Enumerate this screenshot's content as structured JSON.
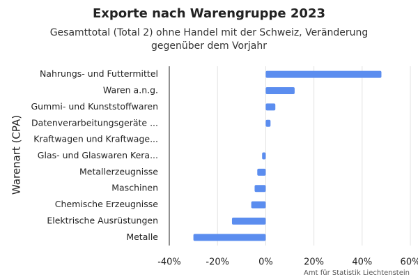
{
  "chart_data": {
    "type": "barh",
    "title": "Exporte nach Warengruppe 2023",
    "subtitle": "Gesamttotal (Total 2) ohne Handel mit der Schweiz, Veränderung gegenüber dem Vorjahr",
    "y_label": "Warenart (CPA)",
    "source": "Amt für Statistik Liechtenstein",
    "categories": [
      "Nahrungs- und Futtermittel",
      "Waren a.n.g.",
      "Gummi- und Kunststoffwaren",
      "Datenverarbeitungsgeräte ...",
      "Kraftwagen und Kraftwage...",
      "Glas- und Glaswaren Kera...",
      "Metallerzeugnisse",
      "Maschinen",
      "Chemische Erzeugnisse",
      "Elektrische Ausrüstungen",
      "Metalle"
    ],
    "values": [
      48,
      12,
      4,
      2,
      0,
      -1.5,
      -3.5,
      -4.6,
      -6,
      -14,
      -30
    ],
    "color": "#5b8def",
    "xlim": [
      -40,
      60
    ],
    "xticks": [
      {
        "value": -40,
        "label": "-40%"
      },
      {
        "value": -20,
        "label": "-20%"
      },
      {
        "value": 0,
        "label": "0%"
      },
      {
        "value": 20,
        "label": "20%"
      },
      {
        "value": 40,
        "label": "40%"
      },
      {
        "value": 60,
        "label": "60%"
      }
    ],
    "grid": true
  }
}
